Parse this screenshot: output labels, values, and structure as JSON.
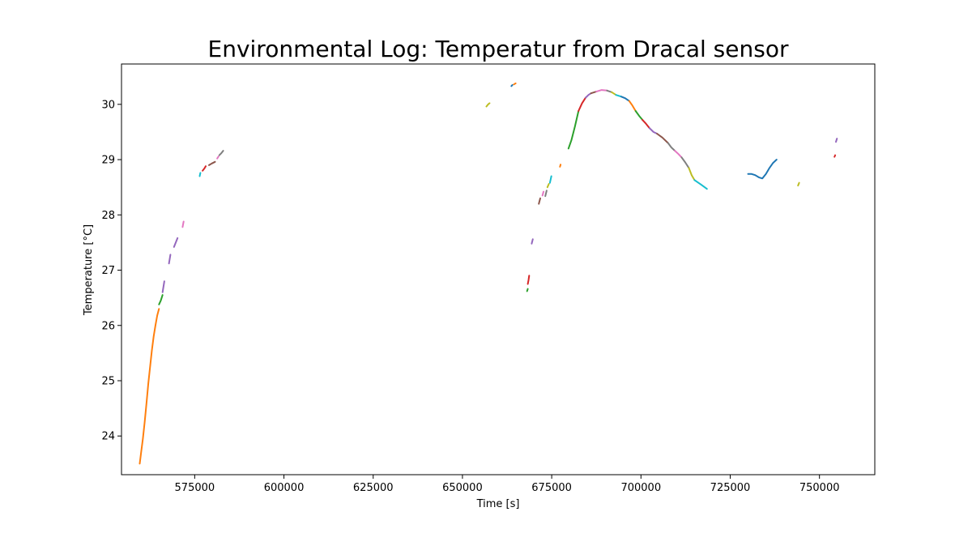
{
  "chart_data": {
    "type": "line",
    "title": "Environmental Log: Temperatur from Dracal sensor",
    "xlabel": "Time [s]",
    "ylabel": "Temperature [°C]",
    "xlim": [
      554500,
      765500
    ],
    "ylim": [
      23.3,
      30.73
    ],
    "xticks": [
      575000,
      600000,
      625000,
      650000,
      675000,
      700000,
      725000,
      750000
    ],
    "yticks": [
      24,
      25,
      26,
      27,
      28,
      29,
      30
    ],
    "grid": false,
    "legend": "none",
    "series": [
      {
        "color": "#ff7f0e",
        "x": [
          559600,
          560000,
          560500,
          561000,
          561500,
          562000,
          562500,
          563000,
          563500,
          564000,
          564500,
          565000
        ],
        "y": [
          23.5,
          23.7,
          23.95,
          24.25,
          24.6,
          24.95,
          25.25,
          25.55,
          25.8,
          26.0,
          26.18,
          26.3
        ]
      },
      {
        "color": "#2ca02c",
        "x": [
          565000,
          565500,
          566000
        ],
        "y": [
          26.38,
          26.45,
          26.55
        ]
      },
      {
        "color": "#9467bd",
        "x": [
          566000,
          566500
        ],
        "y": [
          26.6,
          26.8
        ]
      },
      {
        "color": "#9467bd",
        "x": [
          567800,
          568200
        ],
        "y": [
          27.12,
          27.28
        ]
      },
      {
        "color": "#9467bd",
        "x": [
          569200,
          569700,
          570200
        ],
        "y": [
          27.42,
          27.5,
          27.58
        ]
      },
      {
        "color": "#e377c2",
        "x": [
          571600,
          571900
        ],
        "y": [
          27.78,
          27.88
        ]
      },
      {
        "color": "#17becf",
        "x": [
          576400,
          576600
        ],
        "y": [
          28.7,
          28.76
        ]
      },
      {
        "color": "#d62728",
        "x": [
          577200,
          577700,
          578100
        ],
        "y": [
          28.8,
          28.84,
          28.88
        ]
      },
      {
        "color": "#8c564b",
        "x": [
          579000,
          579800,
          580700
        ],
        "y": [
          28.9,
          28.93,
          28.96
        ]
      },
      {
        "color": "#e377c2",
        "x": [
          581300,
          581700
        ],
        "y": [
          29.02,
          29.06
        ]
      },
      {
        "color": "#7f7f7f",
        "x": [
          581900,
          582500,
          583000
        ],
        "y": [
          29.08,
          29.12,
          29.16
        ]
      },
      {
        "color": "#bcbd22",
        "x": [
          656700,
          657200,
          657600
        ],
        "y": [
          29.96,
          30.0,
          30.02
        ]
      },
      {
        "color": "#1f77b4",
        "x": [
          663700,
          664000
        ],
        "y": [
          30.33,
          30.35
        ]
      },
      {
        "color": "#ff7f0e",
        "x": [
          664400,
          664900
        ],
        "y": [
          30.36,
          30.38
        ]
      },
      {
        "color": "#2ca02c",
        "x": [
          668100,
          668300
        ],
        "y": [
          26.62,
          26.66
        ]
      },
      {
        "color": "#d62728",
        "x": [
          668300,
          668500,
          668700
        ],
        "y": [
          26.75,
          26.82,
          26.9
        ]
      },
      {
        "color": "#9467bd",
        "x": [
          669400,
          669700
        ],
        "y": [
          27.48,
          27.56
        ]
      },
      {
        "color": "#8c564b",
        "x": [
          671400,
          671800
        ],
        "y": [
          28.2,
          28.3
        ]
      },
      {
        "color": "#e377c2",
        "x": [
          672400,
          672700
        ],
        "y": [
          28.35,
          28.42
        ]
      },
      {
        "color": "#7f7f7f",
        "x": [
          673200,
          673600
        ],
        "y": [
          28.34,
          28.44
        ]
      },
      {
        "color": "#bcbd22",
        "x": [
          673800,
          674200
        ],
        "y": [
          28.5,
          28.56
        ]
      },
      {
        "color": "#17becf",
        "x": [
          674500,
          674900
        ],
        "y": [
          28.58,
          28.7
        ]
      },
      {
        "color": "#ff7f0e",
        "x": [
          677300,
          677500
        ],
        "y": [
          28.87,
          28.91
        ]
      },
      {
        "color": "#2ca02c",
        "x": [
          679700,
          680500,
          681500,
          682500
        ],
        "y": [
          29.2,
          29.35,
          29.6,
          29.88
        ]
      },
      {
        "color": "#d62728",
        "x": [
          682500,
          683500,
          684500
        ],
        "y": [
          29.88,
          30.02,
          30.12
        ]
      },
      {
        "color": "#9467bd",
        "x": [
          684500,
          685300,
          686000
        ],
        "y": [
          30.12,
          30.17,
          30.2
        ]
      },
      {
        "color": "#8c564b",
        "x": [
          686000,
          687500
        ],
        "y": [
          30.2,
          30.23
        ]
      },
      {
        "color": "#e377c2",
        "x": [
          687500,
          689000,
          690500
        ],
        "y": [
          30.23,
          30.26,
          30.25
        ]
      },
      {
        "color": "#7f7f7f",
        "x": [
          690500,
          691800
        ],
        "y": [
          30.25,
          30.22
        ]
      },
      {
        "color": "#bcbd22",
        "x": [
          691800,
          693000
        ],
        "y": [
          30.22,
          30.17
        ]
      },
      {
        "color": "#17becf",
        "x": [
          693000,
          694500
        ],
        "y": [
          30.17,
          30.14
        ]
      },
      {
        "color": "#1f77b4",
        "x": [
          694500,
          695600,
          696700
        ],
        "y": [
          30.14,
          30.11,
          30.06
        ]
      },
      {
        "color": "#ff7f0e",
        "x": [
          696700,
          697600,
          698500
        ],
        "y": [
          30.06,
          29.98,
          29.88
        ]
      },
      {
        "color": "#2ca02c",
        "x": [
          698500,
          699500,
          700400
        ],
        "y": [
          29.88,
          29.79,
          29.72
        ]
      },
      {
        "color": "#d62728",
        "x": [
          700400,
          701400,
          702400
        ],
        "y": [
          29.72,
          29.65,
          29.57
        ]
      },
      {
        "color": "#9467bd",
        "x": [
          702400,
          703500,
          704500
        ],
        "y": [
          29.57,
          29.5,
          29.47
        ]
      },
      {
        "color": "#8c564b",
        "x": [
          704500,
          706000,
          707600
        ],
        "y": [
          29.47,
          29.4,
          29.3
        ]
      },
      {
        "color": "#7f7f7f",
        "x": [
          707600,
          708500,
          709500
        ],
        "y": [
          29.3,
          29.22,
          29.16
        ]
      },
      {
        "color": "#e377c2",
        "x": [
          709500,
          710500,
          711400
        ],
        "y": [
          29.16,
          29.1,
          29.04
        ]
      },
      {
        "color": "#7f7f7f",
        "x": [
          711400,
          712400,
          713400
        ],
        "y": [
          29.04,
          28.95,
          28.85
        ]
      },
      {
        "color": "#bcbd22",
        "x": [
          713400,
          714200,
          715000
        ],
        "y": [
          28.85,
          28.72,
          28.63
        ]
      },
      {
        "color": "#17becf",
        "x": [
          715000,
          716800,
          718500
        ],
        "y": [
          28.63,
          28.55,
          28.47
        ]
      },
      {
        "color": "#1f77b4",
        "x": [
          730000,
          731000,
          732000,
          733000,
          734000,
          735000,
          736000,
          737000,
          738000
        ],
        "y": [
          28.74,
          28.74,
          28.72,
          28.68,
          28.66,
          28.74,
          28.85,
          28.94,
          29.0
        ]
      },
      {
        "color": "#bcbd22",
        "x": [
          744000,
          744300
        ],
        "y": [
          28.53,
          28.58
        ]
      },
      {
        "color": "#d62728",
        "x": [
          754200,
          754400
        ],
        "y": [
          29.05,
          29.08
        ]
      },
      {
        "color": "#9467bd",
        "x": [
          754600,
          754900
        ],
        "y": [
          29.32,
          29.38
        ]
      }
    ]
  }
}
